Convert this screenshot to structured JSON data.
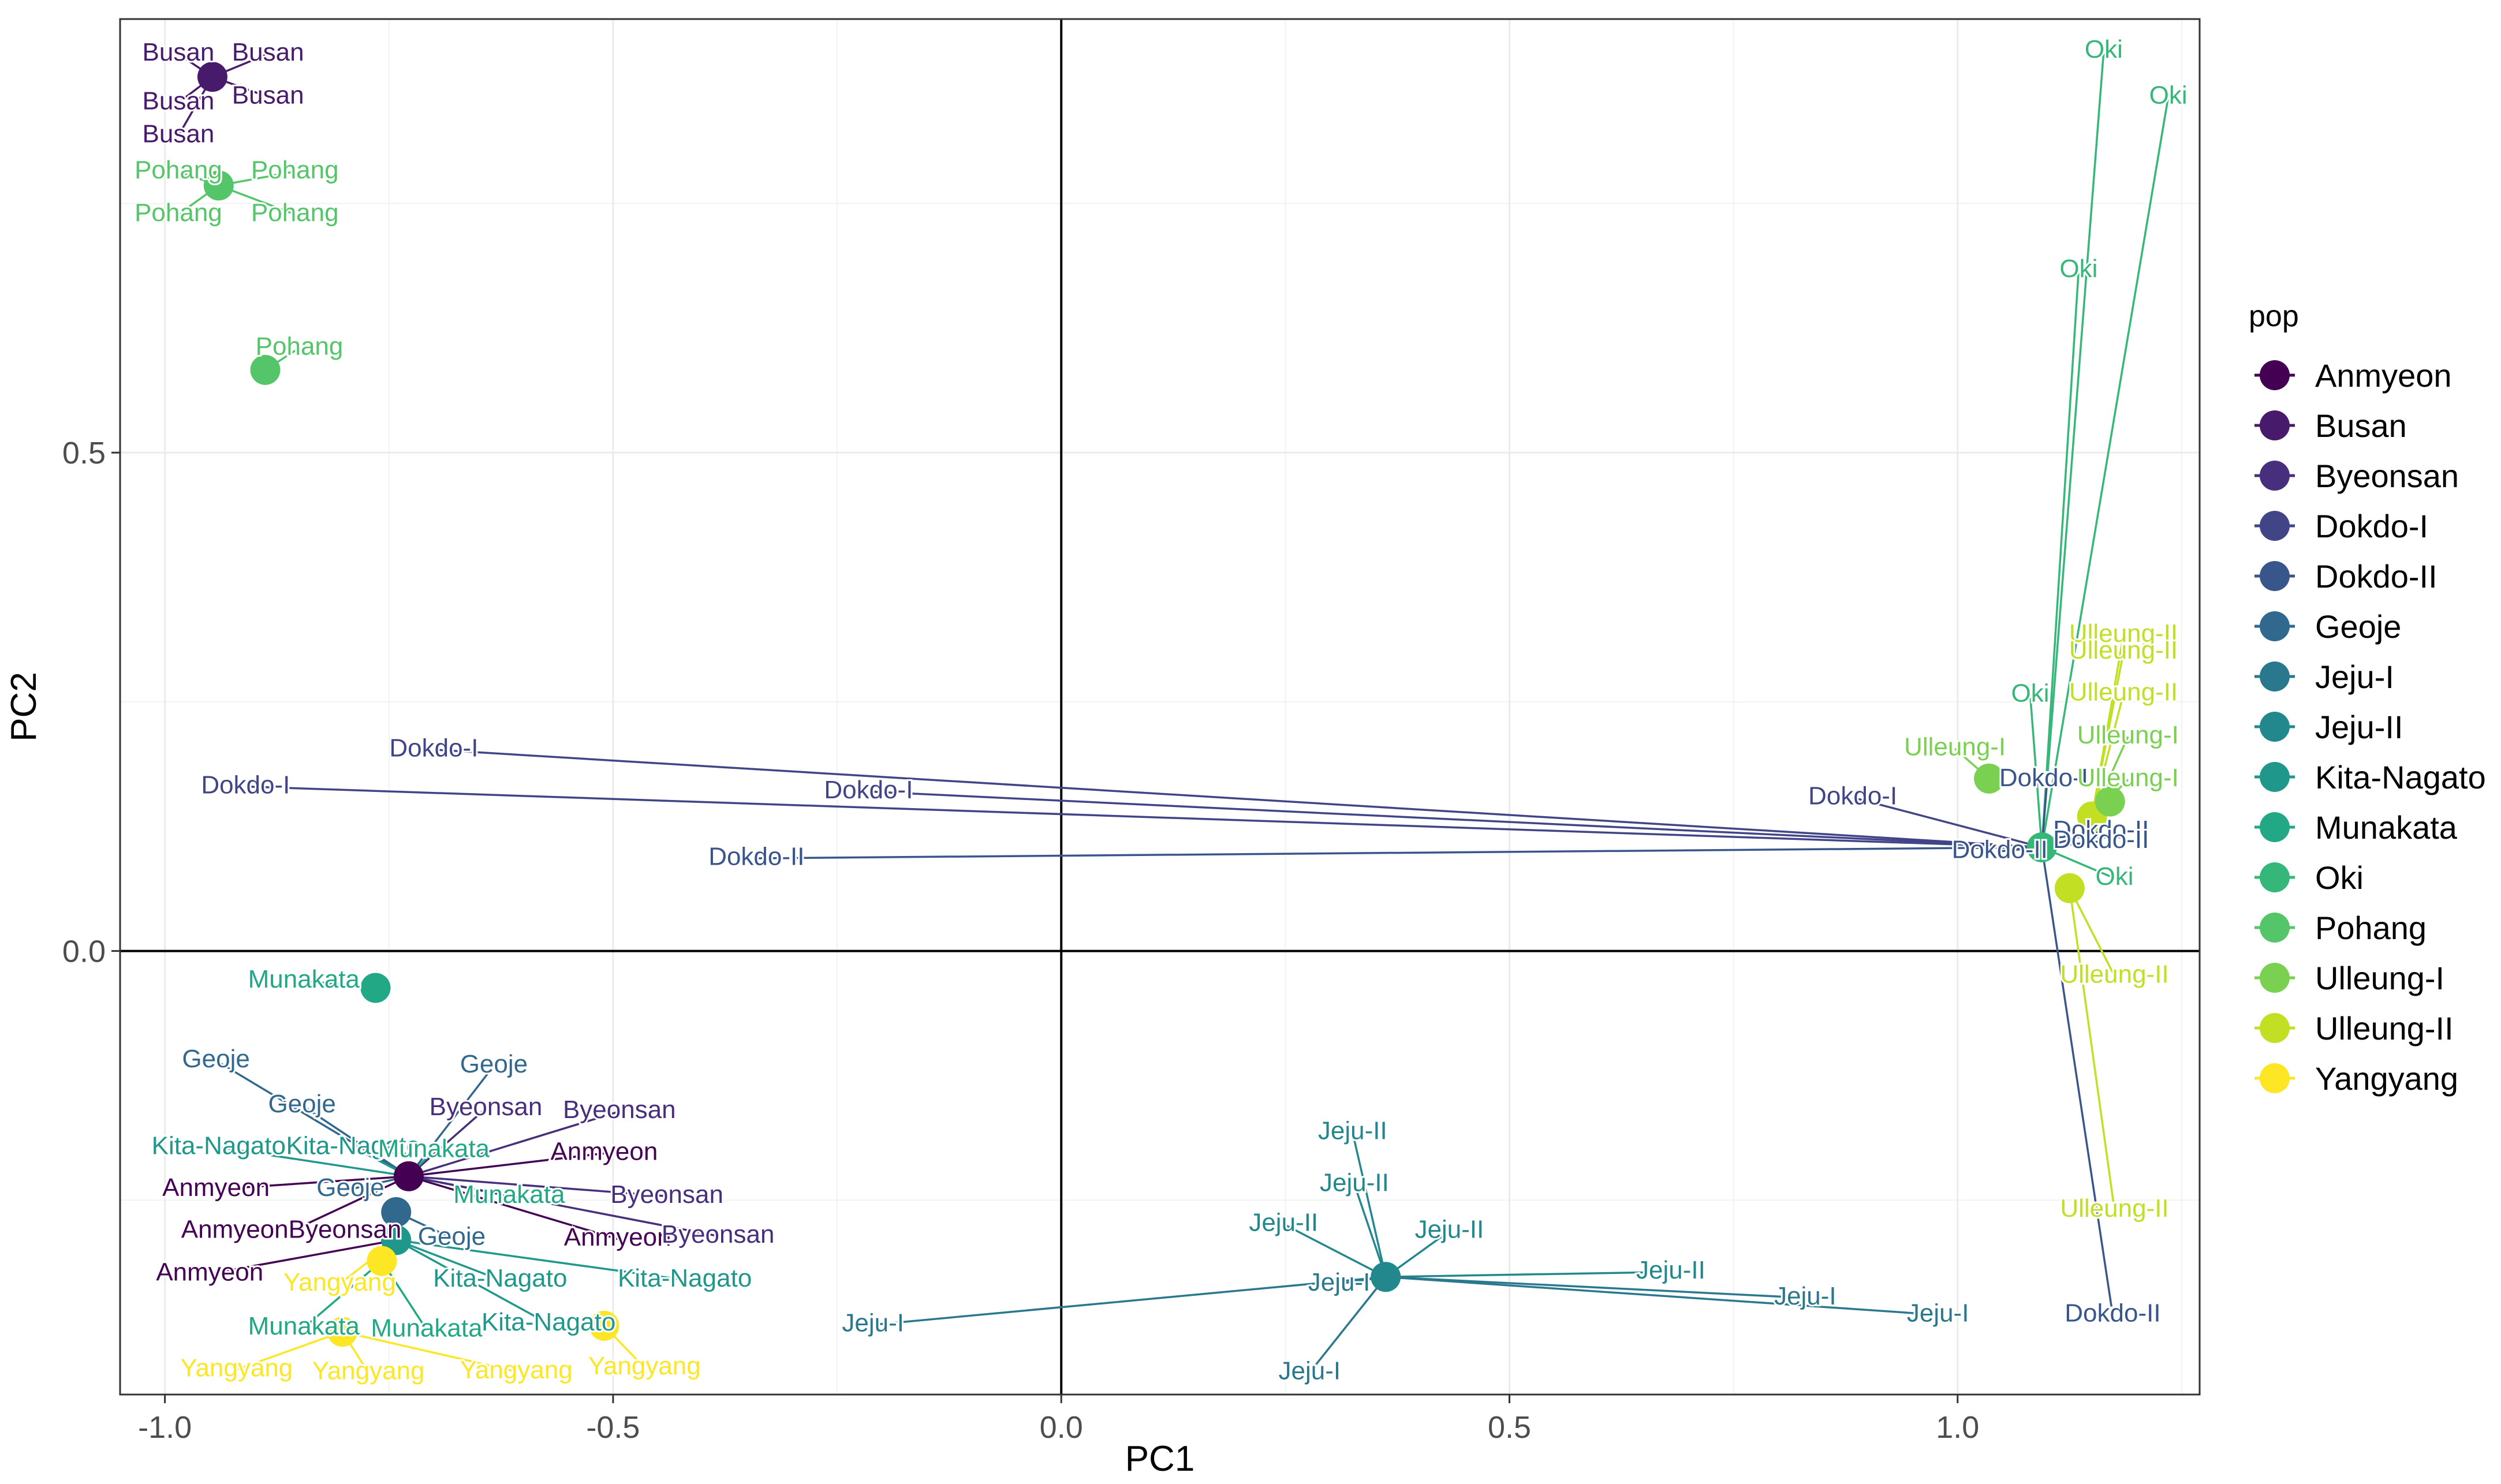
{
  "chart_data": {
    "type": "scatter",
    "title": "",
    "xlabel": "PC1",
    "ylabel": "PC2",
    "xlim": [
      -1.05,
      1.27
    ],
    "ylim": [
      -0.445,
      0.935
    ],
    "xticks": [
      -1.0,
      -0.5,
      0.0,
      0.5,
      1.0
    ],
    "xtick_labels": [
      "-1.0",
      "-0.5",
      "0.0",
      "0.5",
      "1.0"
    ],
    "yticks": [
      0.0,
      0.5
    ],
    "ytick_labels": [
      "0.0",
      "0.5"
    ],
    "reference_lines": {
      "x": 0,
      "y": 0
    },
    "grid": true,
    "legend": {
      "title": "pop",
      "position": "right",
      "entries": [
        {
          "name": "Anmyeon",
          "color": "#440154"
        },
        {
          "name": "Busan",
          "color": "#481A6C"
        },
        {
          "name": "Byeonsan",
          "color": "#472F7D"
        },
        {
          "name": "Dokdo-I",
          "color": "#414487"
        },
        {
          "name": "Dokdo-II",
          "color": "#39568C"
        },
        {
          "name": "Geoje",
          "color": "#31688E"
        },
        {
          "name": "Jeju-I",
          "color": "#2A788E"
        },
        {
          "name": "Jeju-II",
          "color": "#23888E"
        },
        {
          "name": "Kita-Nagato",
          "color": "#1F988B"
        },
        {
          "name": "Munakata",
          "color": "#22A884"
        },
        {
          "name": "Oki",
          "color": "#35B779"
        },
        {
          "name": "Pohang",
          "color": "#54C568"
        },
        {
          "name": "Ulleung-I",
          "color": "#7AD151"
        },
        {
          "name": "Ulleung-II",
          "color": "#C2DF23"
        },
        {
          "name": "Yangyang",
          "color": "#FDE725"
        }
      ]
    },
    "clusters": [
      {
        "pop": "Busan",
        "x": -0.947,
        "y": 0.877,
        "labels": [
          {
            "text": "Busan",
            "x": -0.985,
            "y": 0.9
          },
          {
            "text": "Busan",
            "x": -0.885,
            "y": 0.9
          },
          {
            "text": "Busan",
            "x": -0.985,
            "y": 0.851
          },
          {
            "text": "Busan",
            "x": -0.885,
            "y": 0.857
          },
          {
            "text": "Busan",
            "x": -0.985,
            "y": 0.818
          }
        ]
      },
      {
        "pop": "Pohang",
        "x": -0.94,
        "y": 0.768,
        "labels": [
          {
            "text": "Pohang",
            "x": -0.985,
            "y": 0.782
          },
          {
            "text": "Pohang",
            "x": -0.855,
            "y": 0.782
          },
          {
            "text": "Pohang",
            "x": -0.985,
            "y": 0.739
          },
          {
            "text": "Pohang",
            "x": -0.855,
            "y": 0.739
          }
        ]
      },
      {
        "pop": "Pohang",
        "x": -0.888,
        "y": 0.583,
        "labels": [
          {
            "text": "Pohang",
            "x": -0.85,
            "y": 0.605
          }
        ]
      },
      {
        "pop": "Munakata",
        "x": -0.765,
        "y": -0.037,
        "labels": [
          {
            "text": "Munakata",
            "x": -0.845,
            "y": -0.03
          }
        ]
      },
      {
        "pop": "Anmyeon",
        "x": -0.728,
        "y": -0.226,
        "labels": [
          {
            "text": "Geoje",
            "x": -0.943,
            "y": -0.11
          },
          {
            "text": "Geoje",
            "x": -0.633,
            "y": -0.115
          },
          {
            "text": "Geoje",
            "x": -0.847,
            "y": -0.155
          },
          {
            "text": "Byeonsan",
            "x": -0.642,
            "y": -0.158
          },
          {
            "text": "Byeonsan",
            "x": -0.493,
            "y": -0.161
          },
          {
            "text": "Kita-Nagato",
            "x": -0.94,
            "y": -0.197
          },
          {
            "text": "Kita-Nagato",
            "x": -0.79,
            "y": -0.197
          },
          {
            "text": "Munakata",
            "x": -0.7,
            "y": -0.2
          },
          {
            "text": "Anmyeon",
            "x": -0.51,
            "y": -0.203
          },
          {
            "text": "Anmyeon",
            "x": -0.943,
            "y": -0.239
          },
          {
            "text": "Geoje",
            "x": -0.793,
            "y": -0.239
          },
          {
            "text": "Munakata",
            "x": -0.616,
            "y": -0.246
          },
          {
            "text": "Byeonsan",
            "x": -0.44,
            "y": -0.246
          },
          {
            "text": "AnmyeonByeonsan",
            "x": -0.859,
            "y": -0.281
          },
          {
            "text": "Anmyeon",
            "x": -0.495,
            "y": -0.289
          },
          {
            "text": "Byeonsan",
            "x": -0.383,
            "y": -0.286
          }
        ]
      },
      {
        "pop": "Geoje",
        "x": -0.742,
        "y": -0.262,
        "labels": [
          {
            "text": "Geoje",
            "x": -0.68,
            "y": -0.288
          }
        ]
      },
      {
        "pop": "Kita-Nagato",
        "x": -0.742,
        "y": -0.29,
        "labels": [
          {
            "text": "Anmyeon",
            "x": -0.95,
            "y": -0.324
          },
          {
            "text": "Yangyang",
            "x": -0.805,
            "y": -0.334
          },
          {
            "text": "Kita-Nagato",
            "x": -0.626,
            "y": -0.33
          },
          {
            "text": "Kita-Nagato",
            "x": -0.42,
            "y": -0.33
          },
          {
            "text": "Kita-Nagato",
            "x": -0.572,
            "y": -0.374
          }
        ]
      },
      {
        "pop": "Yangyang",
        "x": -0.758,
        "y": -0.311,
        "labels": [
          {
            "text": "Munakata",
            "x": -0.845,
            "y": -0.378
          },
          {
            "text": "Munakata",
            "x": -0.708,
            "y": -0.38
          }
        ]
      },
      {
        "pop": "Yangyang",
        "x": -0.802,
        "y": -0.382,
        "labels": [
          {
            "text": "Yangyang",
            "x": -0.92,
            "y": -0.42
          },
          {
            "text": "Yangyang",
            "x": -0.773,
            "y": -0.423
          },
          {
            "text": "Yangyang",
            "x": -0.608,
            "y": -0.422
          }
        ]
      },
      {
        "pop": "Yangyang",
        "x": -0.51,
        "y": -0.376,
        "labels": [
          {
            "text": "Yangyang",
            "x": -0.465,
            "y": -0.418
          }
        ]
      },
      {
        "pop": "Jeju-II",
        "x": 0.362,
        "y": -0.327,
        "labels": [
          {
            "text": "Jeju-II",
            "x": 0.325,
            "y": -0.182
          },
          {
            "text": "Jeju-II",
            "x": 0.327,
            "y": -0.234
          },
          {
            "text": "Jeju-II",
            "x": 0.248,
            "y": -0.274
          },
          {
            "text": "Jeju-II",
            "x": 0.433,
            "y": -0.281
          },
          {
            "text": "Jeju-I",
            "x": 0.31,
            "y": -0.334
          },
          {
            "text": "Jeju-II",
            "x": 0.68,
            "y": -0.322
          },
          {
            "text": "Jeju-I",
            "x": 0.83,
            "y": -0.348
          },
          {
            "text": "Jeju-I",
            "x": 0.978,
            "y": -0.365
          },
          {
            "text": "Jeju-I",
            "x": -0.21,
            "y": -0.375
          },
          {
            "text": "Jeju-I",
            "x": 0.277,
            "y": -0.423
          }
        ]
      },
      {
        "pop": "Oki",
        "x": 1.094,
        "y": 0.104,
        "labels": [
          {
            "text": "Oki",
            "x": 1.163,
            "y": 0.903
          },
          {
            "text": "Oki",
            "x": 1.235,
            "y": 0.857
          },
          {
            "text": "Oki",
            "x": 1.135,
            "y": 0.683
          },
          {
            "text": "Oki",
            "x": 1.081,
            "y": 0.257
          },
          {
            "text": "Oki",
            "x": 1.175,
            "y": 0.073
          },
          {
            "text": "Dokdo-I",
            "x": -0.7,
            "y": 0.202
          },
          {
            "text": "Dokdo-I",
            "x": -0.91,
            "y": 0.165
          },
          {
            "text": "Dokdo-I",
            "x": -0.215,
            "y": 0.16
          },
          {
            "text": "Dokdo-I",
            "x": 0.883,
            "y": 0.154
          },
          {
            "text": "Dokdo-II",
            "x": 1.1,
            "y": 0.172
          },
          {
            "text": "Dokdo-II",
            "x": 1.16,
            "y": 0.12
          },
          {
            "text": "Dokdo-II",
            "x": 1.16,
            "y": 0.11
          },
          {
            "text": "Dokdo-II",
            "x": 1.047,
            "y": 0.1
          },
          {
            "text": "Dokdo-II",
            "x": -0.34,
            "y": 0.093
          },
          {
            "text": "Dokdo-II",
            "x": 1.173,
            "y": -0.365
          }
        ]
      },
      {
        "pop": "Ulleung-I",
        "x": 1.035,
        "y": 0.173,
        "labels": [
          {
            "text": "Ulleung-I",
            "x": 0.997,
            "y": 0.203
          }
        ]
      },
      {
        "pop": "Ulleung-II",
        "x": 1.15,
        "y": 0.135,
        "labels": [
          {
            "text": "Ulleung-II",
            "x": 1.185,
            "y": 0.317
          },
          {
            "text": "Ulleung-II",
            "x": 1.185,
            "y": 0.3
          },
          {
            "text": "Ulleung-II",
            "x": 1.185,
            "y": 0.258
          },
          {
            "text": "Ulleung-I",
            "x": 1.19,
            "y": 0.215
          },
          {
            "text": "Ulleung-I",
            "x": 1.19,
            "y": 0.172
          }
        ]
      },
      {
        "pop": "Ulleung-I",
        "x": 1.17,
        "y": 0.15,
        "labels": []
      },
      {
        "pop": "Ulleung-II",
        "x": 1.125,
        "y": 0.063,
        "labels": [
          {
            "text": "Ulleung-II",
            "x": 1.175,
            "y": -0.025
          },
          {
            "text": "Ulleung-II",
            "x": 1.175,
            "y": -0.26
          }
        ]
      }
    ]
  }
}
